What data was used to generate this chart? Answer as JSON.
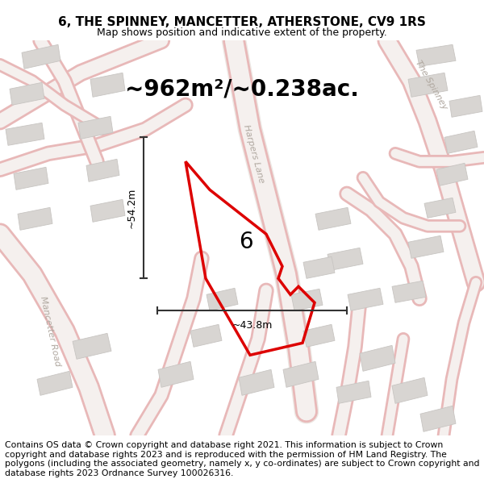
{
  "title_line1": "6, THE SPINNEY, MANCETTER, ATHERSTONE, CV9 1RS",
  "title_line2": "Map shows position and indicative extent of the property.",
  "area_text": "~962m²/~0.238ac.",
  "label_6": "6",
  "dim_height": "~54.2m",
  "dim_width": "~43.8m",
  "road_label": "Mancetter Road",
  "lane_label": "Harpers Lane",
  "spinney_label": "The Spinney",
  "footer_text": "Contains OS data © Crown copyright and database right 2021. This information is subject to Crown copyright and database rights 2023 and is reproduced with the permission of HM Land Registry. The polygons (including the associated geometry, namely x, y co-ordinates) are subject to Crown copyright and database rights 2023 Ordnance Survey 100026316.",
  "map_bg": "#f0efed",
  "road_outline_color": "#e8b8b8",
  "road_fill_color": "#f5f0ee",
  "building_color": "#d8d5d2",
  "building_edge": "#c8c5c2",
  "red_color": "#dd0000",
  "dim_line_color": "#333333",
  "text_color_road": "#b0a8a0",
  "title_fontsize": 11,
  "subtitle_fontsize": 9,
  "area_fontsize": 20,
  "footer_fontsize": 7.8,
  "label6_fontsize": 20,
  "dim_fontsize": 9,
  "road_label_fontsize": 8,
  "lane_label_fontsize": 8
}
